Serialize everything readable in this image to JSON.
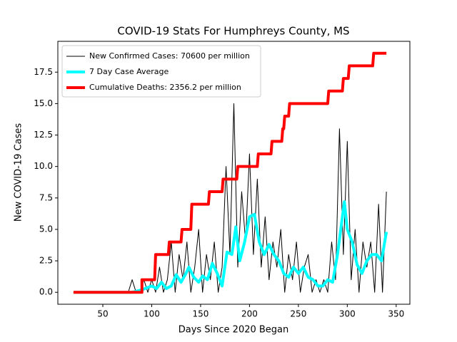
{
  "chart_data": {
    "type": "line",
    "title": "COVID-19 Stats For Humphreys County, MS",
    "x_label": "Days Since 2020 Began",
    "y_label": "New COVID-19 Cases",
    "xlim": [
      4,
      364
    ],
    "ylim": [
      -0.95,
      19.95
    ],
    "xticks": [
      50,
      100,
      150,
      200,
      250,
      300,
      350
    ],
    "yticks": [
      {
        "value": 0,
        "label": "0.0"
      },
      {
        "value": 2.5,
        "label": "2.5"
      },
      {
        "value": 5,
        "label": "5.0"
      },
      {
        "value": 7.5,
        "label": "7.5"
      },
      {
        "value": 10,
        "label": "10.0"
      },
      {
        "value": 12.5,
        "label": "12.5"
      },
      {
        "value": 15,
        "label": "15.0"
      },
      {
        "value": 17.5,
        "label": "17.5"
      }
    ],
    "legend": "upper left",
    "series": [
      {
        "name": "New Confirmed Cases: 70600 per million",
        "color": "#000000",
        "width": 1,
        "x": [
          20,
          76,
          80,
          84,
          88,
          92,
          96,
          100,
          104,
          108,
          112,
          116,
          120,
          124,
          128,
          132,
          136,
          140,
          144,
          148,
          152,
          156,
          160,
          164,
          168,
          172,
          176,
          180,
          184,
          188,
          192,
          196,
          200,
          204,
          208,
          212,
          216,
          220,
          224,
          228,
          232,
          236,
          240,
          244,
          248,
          252,
          256,
          260,
          264,
          268,
          272,
          276,
          280,
          284,
          288,
          292,
          296,
          300,
          304,
          308,
          312,
          316,
          320,
          324,
          328,
          332,
          336,
          340
        ],
        "values": [
          0,
          0,
          1,
          0,
          0,
          1,
          0,
          1,
          0,
          2,
          0,
          1,
          4,
          0,
          3,
          1,
          4,
          0,
          2,
          5,
          0,
          3,
          1,
          4,
          0,
          2,
          10,
          3,
          15,
          2,
          8,
          4,
          11,
          3,
          9,
          2,
          6,
          1,
          4,
          2,
          5,
          0,
          3,
          1,
          4,
          0,
          2,
          3,
          0,
          1,
          0,
          1,
          0,
          4,
          1,
          13,
          3,
          12,
          1,
          5,
          0,
          4,
          2,
          4,
          0,
          7,
          0,
          8
        ]
      },
      {
        "name": "7 Day Case Average",
        "color": "#00ffff",
        "width": 4,
        "x": [
          20,
          80,
          90,
          100,
          105,
          110,
          115,
          120,
          125,
          130,
          135,
          138,
          143,
          148,
          152,
          157,
          162,
          167,
          172,
          177,
          182,
          186,
          190,
          195,
          200,
          205,
          210,
          215,
          220,
          225,
          230,
          235,
          240,
          245,
          250,
          255,
          260,
          265,
          270,
          275,
          280,
          285,
          290,
          295,
          297,
          300,
          305,
          310,
          315,
          320,
          325,
          330,
          335,
          340
        ],
        "values": [
          0,
          0,
          0.2,
          0.5,
          0.3,
          0.8,
          0.3,
          0.5,
          1.4,
          0.8,
          1.5,
          2,
          1.2,
          0.8,
          1.3,
          1,
          2.3,
          1.5,
          0.5,
          3.2,
          3,
          5.2,
          2.5,
          4,
          6,
          6.2,
          4,
          3,
          3.8,
          3,
          2.5,
          1.5,
          1.2,
          2,
          1.5,
          2,
          1.2,
          1,
          0.5,
          0.5,
          1,
          0.8,
          3,
          6,
          7.2,
          5,
          4,
          2.2,
          1.5,
          2.5,
          3,
          3,
          2.5,
          4.8
        ]
      },
      {
        "name": "Cumulative Deaths: 2356.2 per million",
        "color": "#ff0000",
        "width": 4,
        "x": [
          20,
          90,
          90,
          103,
          104,
          117,
          118,
          130,
          131,
          140,
          141,
          158,
          159,
          172,
          173,
          187,
          188,
          208,
          209,
          222,
          223,
          233,
          234,
          235,
          236,
          240,
          241,
          280,
          281,
          295,
          296,
          301,
          302,
          326,
          327,
          340
        ],
        "values": [
          0,
          0,
          1,
          1,
          3,
          3,
          4,
          4,
          5,
          5,
          7,
          7,
          8,
          8,
          9,
          9,
          10,
          10,
          11,
          11,
          12,
          12,
          13,
          13,
          14,
          14,
          15,
          15,
          16,
          16,
          17,
          17,
          18,
          18,
          19,
          19
        ]
      }
    ]
  }
}
